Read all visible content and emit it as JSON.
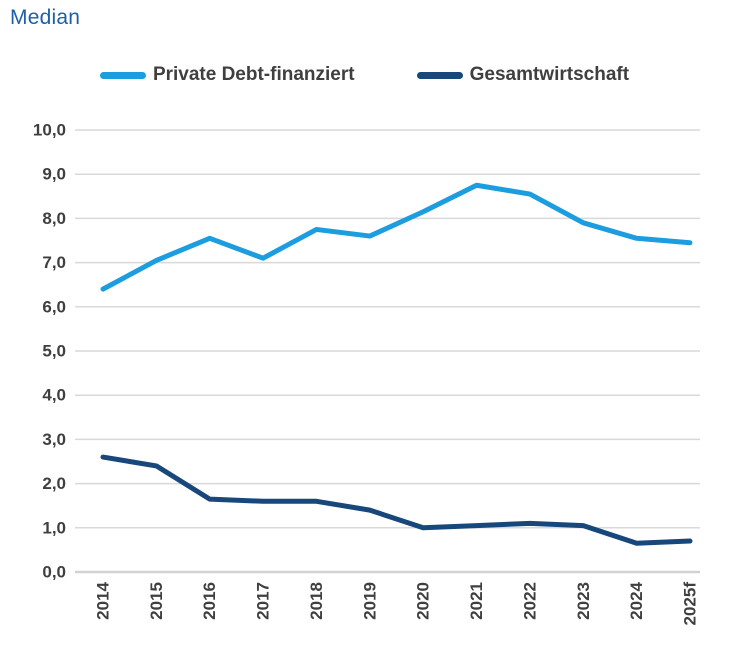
{
  "page": {
    "title": "Median",
    "title_color": "#1e5fa9"
  },
  "legend": {
    "items": [
      {
        "label": "Private Debt-finanziert",
        "color": "#1b9de0"
      },
      {
        "label": "Gesamtwirtschaft",
        "color": "#17477b"
      }
    ]
  },
  "chart_data": {
    "type": "line",
    "title": "Median",
    "categories": [
      "2014",
      "2015",
      "2016",
      "2017",
      "2018",
      "2019",
      "2020",
      "2021",
      "2022",
      "2023",
      "2024",
      "2025f"
    ],
    "series": [
      {
        "name": "Private Debt-finanziert",
        "color": "#1b9de0",
        "values": [
          6.4,
          7.05,
          7.55,
          7.1,
          7.75,
          7.6,
          8.15,
          8.75,
          8.55,
          7.9,
          7.55,
          7.45
        ]
      },
      {
        "name": "Gesamtwirtschaft",
        "color": "#17477b",
        "values": [
          2.6,
          2.4,
          1.65,
          1.6,
          1.6,
          1.4,
          1.0,
          1.05,
          1.1,
          1.05,
          0.65,
          0.7
        ]
      }
    ],
    "xlabel": "",
    "ylabel": "",
    "ylim": [
      0,
      10
    ],
    "ytick_step": 1,
    "ytick_labels": [
      "0,0",
      "1,0",
      "2,0",
      "3,0",
      "4,0",
      "5,0",
      "6,0",
      "7,0",
      "8,0",
      "9,0",
      "10,0"
    ],
    "grid": true,
    "gridline_color": "#d9d9d9",
    "axis_line_color": "#d2d2d2",
    "axis_label_color": "#3f3f3f",
    "legend_position": "top"
  }
}
